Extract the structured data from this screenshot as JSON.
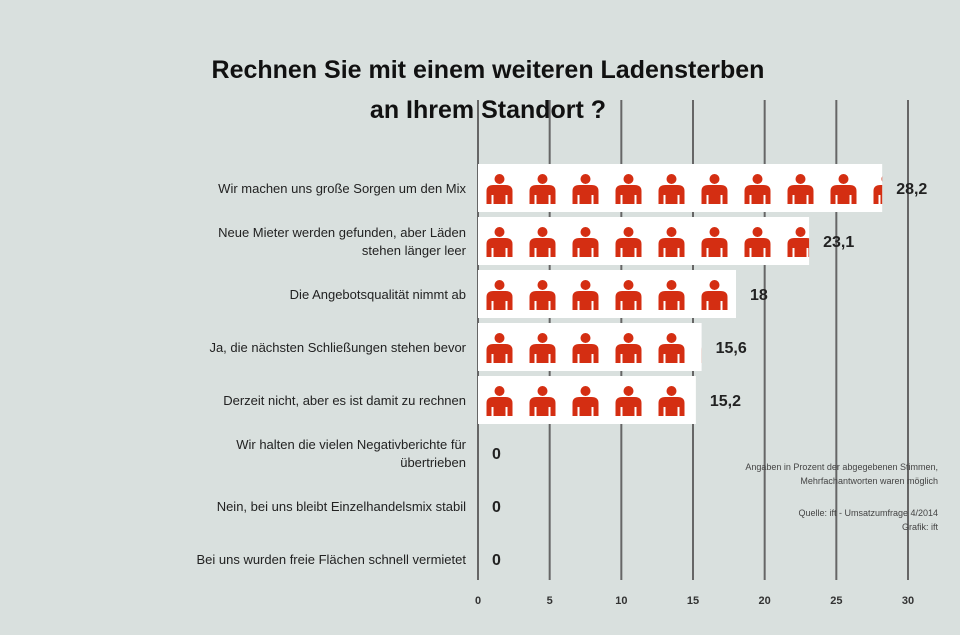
{
  "chart_data": {
    "type": "bar",
    "title_lines": [
      "Rechnen Sie mit einem weiteren Ladensterben",
      "an Ihrem Standort ?"
    ],
    "categories": [
      "Wir machen uns große Sorgen um den Mix",
      "Neue Mieter werden gefunden, aber Läden stehen länger leer",
      "Die Angebotsqualität nimmt ab",
      "Ja, die nächsten Schließungen stehen bevor",
      "Derzeit nicht, aber es ist damit zu rechnen",
      "Wir halten die vielen Negativberichte für übertrieben",
      "Nein, bei uns bleibt Einzelhandelsmix stabil",
      "Bei uns wurden freie Flächen schnell vermietet"
    ],
    "category_lines": [
      [
        "Wir machen uns große Sorgen um den Mix"
      ],
      [
        "Neue Mieter werden gefunden, aber Läden",
        "stehen länger leer"
      ],
      [
        "Die Angebotsqualität nimmt ab"
      ],
      [
        "Ja, die nächsten Schließungen stehen bevor"
      ],
      [
        "Derzeit nicht, aber es ist damit zu rechnen"
      ],
      [
        "Wir halten die vielen Negativberichte für",
        "übertrieben"
      ],
      [
        "Nein, bei uns bleibt Einzelhandelsmix stabil"
      ],
      [
        "Bei uns wurden freie Flächen schnell vermietet"
      ]
    ],
    "values": [
      28.2,
      23.1,
      18,
      15.6,
      15.2,
      0,
      0,
      0
    ],
    "value_labels": [
      "28,2",
      "23,1",
      "18",
      "15,6",
      "15,2",
      "0",
      "0",
      "0"
    ],
    "xlim": [
      0,
      30
    ],
    "xticks": [
      0,
      5,
      10,
      15,
      20,
      25,
      30
    ],
    "grid": true,
    "bar_color": "#d42e12",
    "bar_background": "#ffffff",
    "icon": "person-icon",
    "notes": [
      "Angaben in Prozent der abgegebenen Stimmen,",
      "Mehrfachantworten waren möglich",
      "Quelle: ift - Umsatzumfrage 4/2014",
      "Grafik: ift"
    ]
  }
}
